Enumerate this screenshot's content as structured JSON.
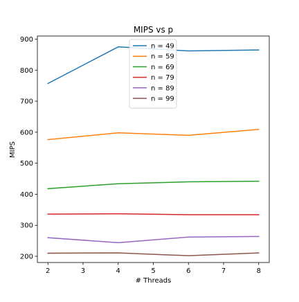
{
  "chart_data": {
    "type": "line",
    "title": "MIPS vs p",
    "xlabel": "# Threads",
    "ylabel": "MIPS",
    "x": [
      2,
      4,
      6,
      8
    ],
    "xlim": [
      1.7,
      8.3
    ],
    "ylim": [
      180,
      910
    ],
    "xticks": [
      2,
      3,
      4,
      5,
      6,
      7,
      8
    ],
    "yticks": [
      200,
      300,
      400,
      500,
      600,
      700,
      800,
      900
    ],
    "grid": false,
    "legend_position": "top-center",
    "series": [
      {
        "name": "n = 49",
        "color": "#1f77b4",
        "values": [
          757,
          875,
          862,
          865
        ]
      },
      {
        "name": "n = 59",
        "color": "#ff7f0e",
        "values": [
          576,
          598,
          590,
          609
        ]
      },
      {
        "name": "n = 69",
        "color": "#2ca02c",
        "values": [
          418,
          434,
          440,
          442
        ]
      },
      {
        "name": "n = 79",
        "color": "#d62728",
        "values": [
          336,
          337,
          334,
          334
        ]
      },
      {
        "name": "n = 89",
        "color": "#9467bd",
        "values": [
          260,
          244,
          262,
          264
        ]
      },
      {
        "name": "n = 99",
        "color": "#8c564b",
        "values": [
          210,
          211,
          202,
          211
        ]
      }
    ]
  }
}
